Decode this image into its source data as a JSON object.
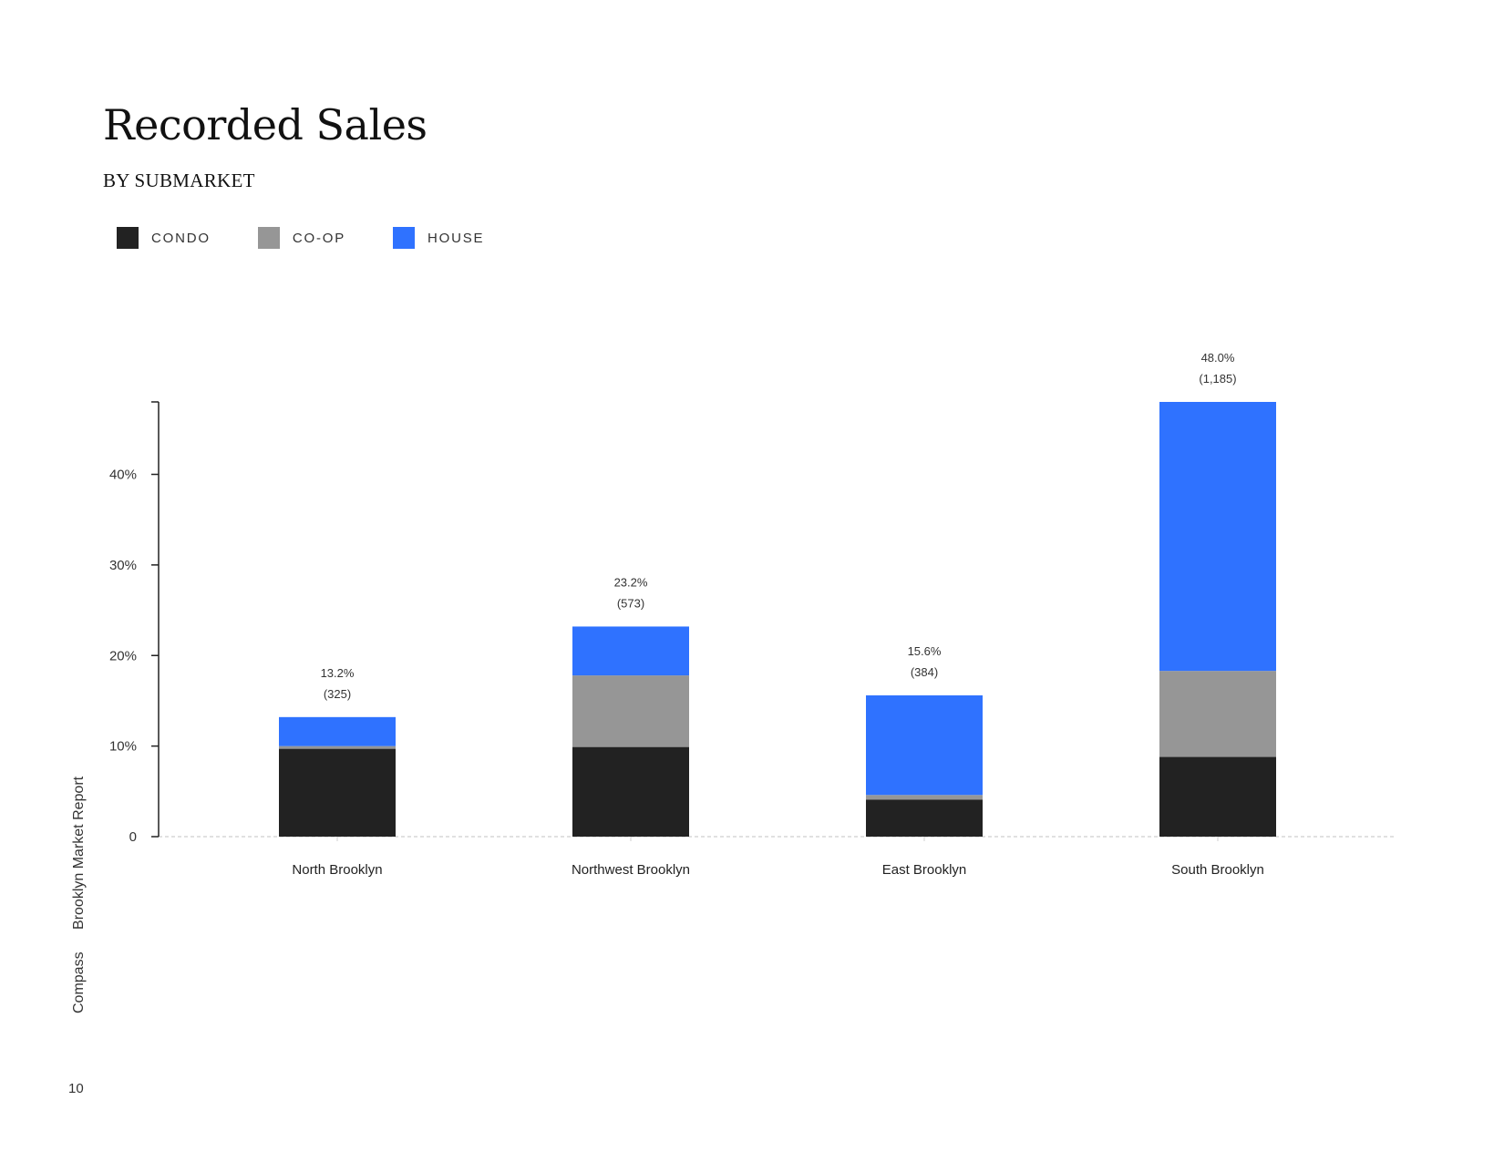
{
  "page": {
    "side_label": [
      "Compass",
      "Brooklyn Market Report"
    ],
    "page_number": "10"
  },
  "chart_data": {
    "type": "bar",
    "stacked": true,
    "title": "Recorded Sales",
    "subtitle": "BY SUBMARKET",
    "categories": [
      "North Brooklyn",
      "Northwest Brooklyn",
      "East Brooklyn",
      "South Brooklyn"
    ],
    "series": [
      {
        "name": "CONDO",
        "color": "#222222",
        "values": [
          9.7,
          9.9,
          4.1,
          8.8
        ]
      },
      {
        "name": "CO-OP",
        "color": "#969696",
        "values": [
          0.3,
          7.9,
          0.5,
          9.5
        ]
      },
      {
        "name": "HOUSE",
        "color": "#2f72ff",
        "values": [
          3.2,
          5.4,
          11.0,
          29.7
        ]
      }
    ],
    "totals": [
      "13.2%",
      "23.2%",
      "15.6%",
      "48.0%"
    ],
    "counts": [
      "(325)",
      "(573)",
      "(384)",
      "(1,185)"
    ],
    "ylim": [
      0,
      48
    ],
    "yticks": [
      0,
      10,
      20,
      30,
      40
    ],
    "ytick_labels": [
      "0",
      "10%",
      "20%",
      "30%",
      "40%"
    ],
    "xlabel": "",
    "ylabel": "",
    "legend_position": "top-left",
    "grid": false
  }
}
